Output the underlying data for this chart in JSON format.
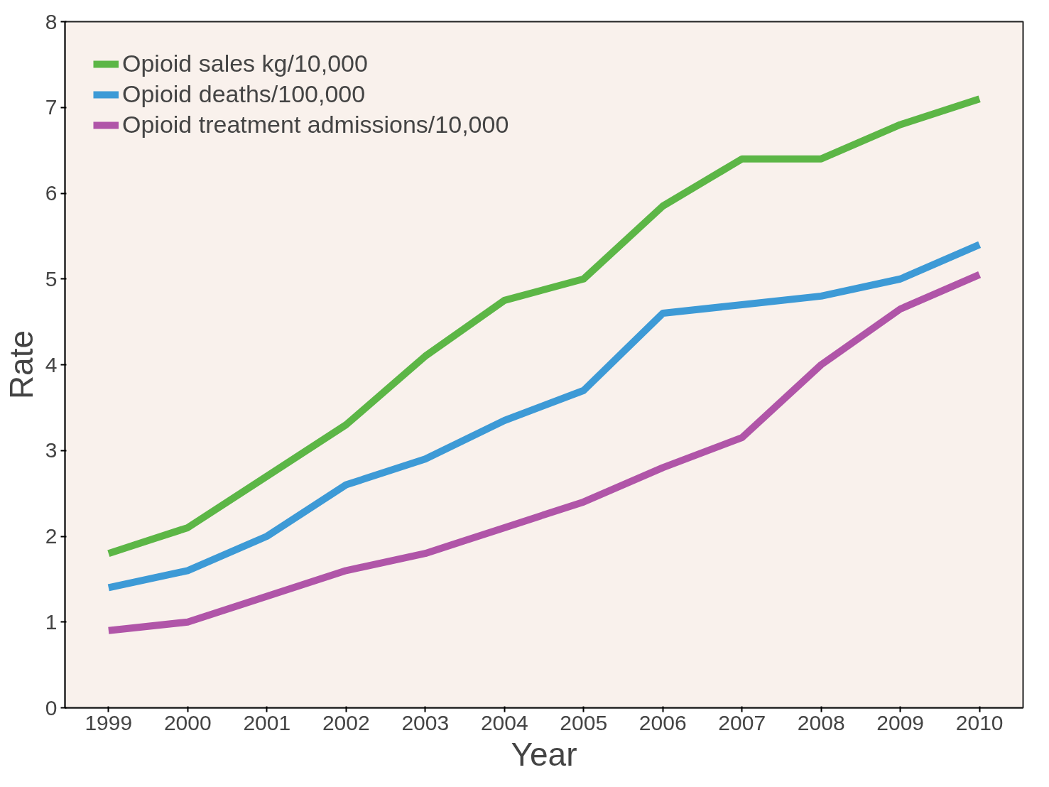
{
  "chart_data": {
    "type": "line",
    "xlabel": "Year",
    "ylabel": "Rate",
    "categories": [
      "1999",
      "2000",
      "2001",
      "2002",
      "2003",
      "2004",
      "2005",
      "2006",
      "2007",
      "2008",
      "2009",
      "2010"
    ],
    "ylim": [
      0,
      8
    ],
    "yticks": [
      0,
      1,
      2,
      3,
      4,
      5,
      6,
      7,
      8
    ],
    "grid": false,
    "legend": "top left",
    "marker": "none",
    "line_style": "solid",
    "series": [
      {
        "name": "Opioid sales kg/10,000",
        "color": "#5cb646",
        "values": [
          1.8,
          2.1,
          2.7,
          3.3,
          4.1,
          4.75,
          5.0,
          5.85,
          6.4,
          6.4,
          6.8,
          7.1
        ]
      },
      {
        "name": "Opioid deaths/100,000",
        "color": "#3d9ad6",
        "values": [
          1.4,
          1.6,
          2.0,
          2.6,
          2.9,
          3.35,
          3.7,
          4.6,
          4.7,
          4.8,
          5.0,
          5.4
        ]
      },
      {
        "name": "Opioid treatment admissions/10,000",
        "color": "#b055a8",
        "values": [
          0.9,
          1.0,
          1.3,
          1.6,
          1.8,
          2.1,
          2.4,
          2.8,
          3.15,
          4.0,
          4.65,
          5.05
        ]
      }
    ]
  }
}
